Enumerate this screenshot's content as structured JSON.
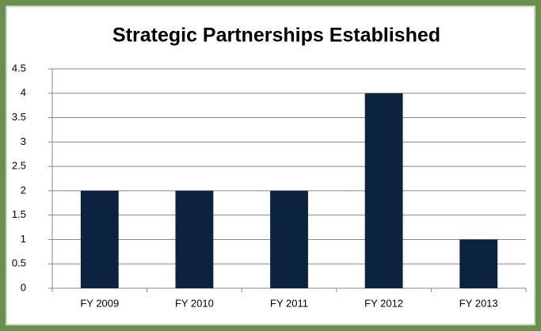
{
  "chart_data": {
    "type": "bar",
    "title": "Strategic Partnerships Established",
    "categories": [
      "FY 2009",
      "FY 2010",
      "FY 2011",
      "FY 2012",
      "FY 2013"
    ],
    "values": [
      2,
      2,
      2,
      4,
      1
    ],
    "color": "#0c2340",
    "ylim": [
      0,
      4.5
    ],
    "yticks": [
      0,
      0.5,
      1,
      1.5,
      2,
      2.5,
      3,
      3.5,
      4,
      4.5
    ],
    "grid": true
  }
}
